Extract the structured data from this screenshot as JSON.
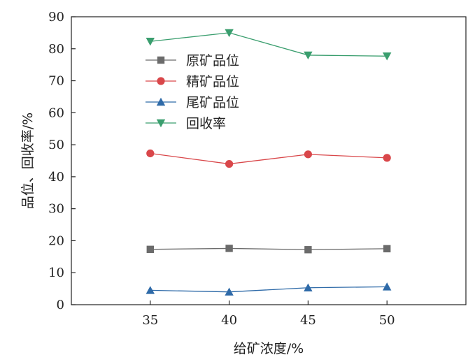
{
  "chart_data": {
    "type": "line",
    "title": "",
    "xlabel": "给矿浓度/%",
    "ylabel": "品位、回收率/%",
    "x": [
      35,
      40,
      45,
      50
    ],
    "xlim": [
      30,
      55
    ],
    "ylim": [
      0,
      90
    ],
    "xticks": [
      "35",
      "40",
      "45",
      "50"
    ],
    "yticks": [
      "0",
      "10",
      "20",
      "30",
      "40",
      "50",
      "60",
      "70",
      "80",
      "90"
    ],
    "grid": false,
    "legend_position": "upper-left",
    "series": [
      {
        "name": "原矿品位",
        "values": [
          17.3,
          17.6,
          17.2,
          17.5
        ],
        "color": "#6b6b6b",
        "marker": "square"
      },
      {
        "name": "精矿品位",
        "values": [
          47.3,
          44.0,
          47.0,
          45.9
        ],
        "color": "#d9474a",
        "marker": "circle"
      },
      {
        "name": "尾矿品位",
        "values": [
          4.5,
          4.0,
          5.3,
          5.6
        ],
        "color": "#2e6aa8",
        "marker": "triangle-up"
      },
      {
        "name": "回收率",
        "values": [
          82.3,
          85.0,
          78.0,
          77.7
        ],
        "color": "#3a9e6e",
        "marker": "triangle-down"
      }
    ]
  }
}
